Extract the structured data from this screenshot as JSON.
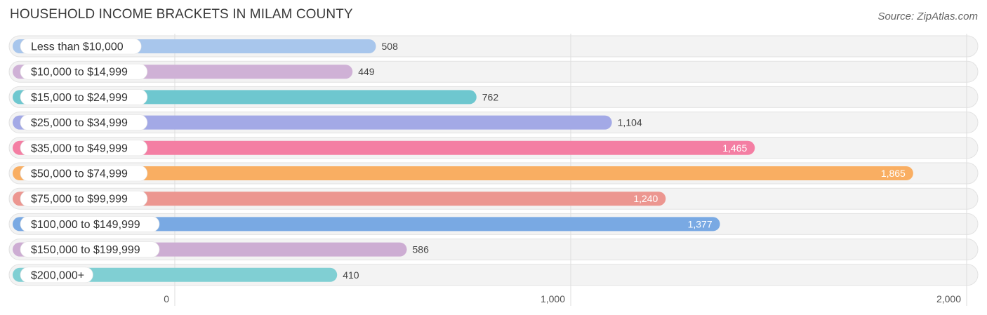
{
  "title": "HOUSEHOLD INCOME BRACKETS IN MILAM COUNTY",
  "source": "Source: ZipAtlas.com",
  "chart_data": {
    "type": "bar",
    "orientation": "horizontal",
    "title": "HOUSEHOLD INCOME BRACKETS IN MILAM COUNTY",
    "categories": [
      "Less than $10,000",
      "$10,000 to $14,999",
      "$15,000 to $24,999",
      "$25,000 to $34,999",
      "$35,000 to $49,999",
      "$50,000 to $74,999",
      "$75,000 to $99,999",
      "$100,000 to $149,999",
      "$150,000 to $199,999",
      "$200,000+"
    ],
    "values": [
      508,
      449,
      762,
      1104,
      1465,
      1865,
      1240,
      1377,
      586,
      410
    ],
    "value_labels": [
      "508",
      "449",
      "762",
      "1,104",
      "1,465",
      "1,865",
      "1,240",
      "1,377",
      "586",
      "410"
    ],
    "colors": [
      "#a8c6ec",
      "#cfb1d6",
      "#6ec7cf",
      "#a3a9e6",
      "#f47ea3",
      "#f9ae62",
      "#ec9690",
      "#79a9e3",
      "#cdadd3",
      "#80cfd3"
    ],
    "xlim": [
      0,
      2000
    ],
    "xticks": [
      0,
      1000,
      2000
    ],
    "xtick_labels": [
      "0",
      "1,000",
      "2,000"
    ],
    "grid": true
  }
}
